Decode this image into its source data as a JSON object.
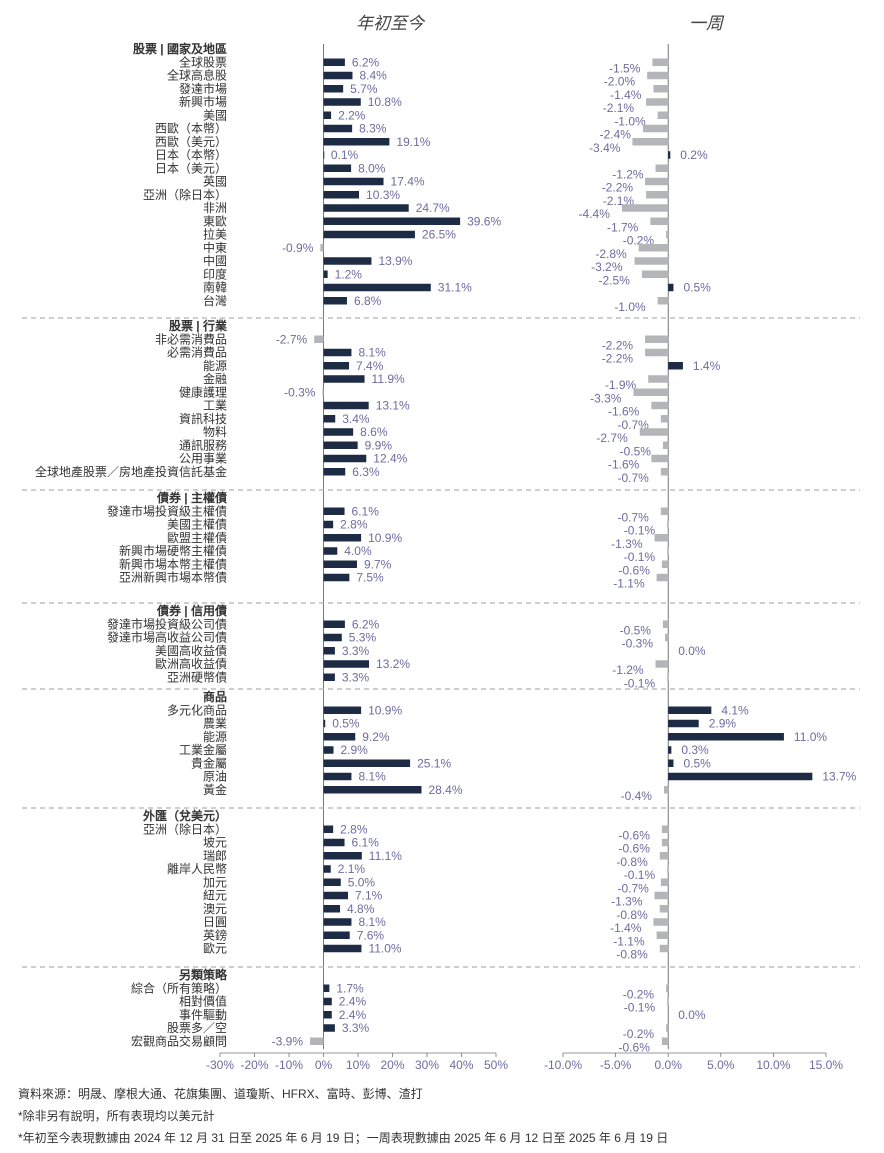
{
  "chart_data": {
    "type": "bar",
    "panels": [
      {
        "title": "年初至今",
        "xlim": [
          -30,
          50
        ],
        "ticks": [
          -30,
          -20,
          -10,
          0,
          10,
          20,
          30,
          40,
          50
        ],
        "tick_labels": [
          "-30%",
          "-20%",
          "-10%",
          "0%",
          "10%",
          "20%",
          "30%",
          "40%",
          "50%"
        ]
      },
      {
        "title": "一周",
        "xlim": [
          -10,
          15
        ],
        "ticks": [
          -10,
          -5,
          0,
          5,
          10,
          15
        ],
        "tick_labels": [
          "-10.0%",
          "-5.0%",
          "0.0%",
          "5.0%",
          "10.0%",
          "15.0%"
        ]
      }
    ],
    "colors": {
      "positive": "#1d2c44",
      "negative": "#b3b5b8",
      "value_label": "#6d6ca0",
      "category": "#333333",
      "divider": "#b0b0b0"
    },
    "groups": [
      {
        "title": "股票 | 國家及地區",
        "rows": [
          {
            "label": "全球股票",
            "ytd": 6.2,
            "week": -1.5
          },
          {
            "label": "全球高息股",
            "ytd": 8.4,
            "week": -2.0
          },
          {
            "label": "發達市場",
            "ytd": 5.7,
            "week": -1.4
          },
          {
            "label": "新興市場",
            "ytd": 10.8,
            "week": -2.1
          },
          {
            "label": "美國",
            "ytd": 2.2,
            "week": -1.0
          },
          {
            "label": "西歐（本幣）",
            "ytd": 8.3,
            "week": -2.4
          },
          {
            "label": "西歐（美元）",
            "ytd": 19.1,
            "week": -3.4
          },
          {
            "label": "日本（本幣）",
            "ytd": 0.1,
            "week": 0.2
          },
          {
            "label": "日本（美元）",
            "ytd": 8.0,
            "week": -1.2
          },
          {
            "label": "英國",
            "ytd": 17.4,
            "week": -2.2
          },
          {
            "label": "亞洲（除日本）",
            "ytd": 10.3,
            "week": -2.1
          },
          {
            "label": "非洲",
            "ytd": 24.7,
            "week": -4.4
          },
          {
            "label": "東歐",
            "ytd": 39.6,
            "week": -1.7
          },
          {
            "label": "拉美",
            "ytd": 26.5,
            "week": -0.2
          },
          {
            "label": "中東",
            "ytd": -0.9,
            "week": -2.8
          },
          {
            "label": "中國",
            "ytd": 13.9,
            "week": -3.2
          },
          {
            "label": "印度",
            "ytd": 1.2,
            "week": -2.5
          },
          {
            "label": "南韓",
            "ytd": 31.1,
            "week": 0.5
          },
          {
            "label": "台灣",
            "ytd": 6.8,
            "week": -1.0
          }
        ]
      },
      {
        "title": "股票 | 行業",
        "rows": [
          {
            "label": "非必需消費品",
            "ytd": -2.7,
            "week": -2.2
          },
          {
            "label": "必需消費品",
            "ytd": 8.1,
            "week": -2.2
          },
          {
            "label": "能源",
            "ytd": 7.4,
            "week": 1.4
          },
          {
            "label": "金融",
            "ytd": 11.9,
            "week": -1.9
          },
          {
            "label": "健康護理",
            "ytd": -0.3,
            "week": -3.3
          },
          {
            "label": "工業",
            "ytd": 13.1,
            "week": -1.6
          },
          {
            "label": "資訊科技",
            "ytd": 3.4,
            "week": -0.7
          },
          {
            "label": "物料",
            "ytd": 8.6,
            "week": -2.7
          },
          {
            "label": "通訊服務",
            "ytd": 9.9,
            "week": -0.5
          },
          {
            "label": "公用事業",
            "ytd": 12.4,
            "week": -1.6
          },
          {
            "label": "全球地產股票／房地產投資信託基金",
            "ytd": 6.3,
            "week": -0.7
          }
        ]
      },
      {
        "title": "債券 | 主權債",
        "rows": [
          {
            "label": "發達市場投資級主權債",
            "ytd": 6.1,
            "week": -0.7
          },
          {
            "label": "美國主權債",
            "ytd": 2.8,
            "week": -0.1
          },
          {
            "label": "歐盟主權債",
            "ytd": 10.9,
            "week": -1.3
          },
          {
            "label": "新興市場硬幣主權債",
            "ytd": 4.0,
            "week": -0.1
          },
          {
            "label": "新興市場本幣主權債",
            "ytd": 9.7,
            "week": -0.6
          },
          {
            "label": "亞洲新興市場本幣債",
            "ytd": 7.5,
            "week": -1.1
          }
        ]
      },
      {
        "title": "債券 | 信用債",
        "rows": [
          {
            "label": "發達市場投資級公司債",
            "ytd": 6.2,
            "week": -0.5
          },
          {
            "label": "發達市場高收益公司債",
            "ytd": 5.3,
            "week": -0.3
          },
          {
            "label": "美國高收益債",
            "ytd": 3.3,
            "week": 0.0
          },
          {
            "label": "歐洲高收益債",
            "ytd": 13.2,
            "week": -1.2
          },
          {
            "label": "亞洲硬幣債",
            "ytd": 3.3,
            "week": -0.1
          }
        ]
      },
      {
        "title": "商品",
        "rows": [
          {
            "label": "多元化商品",
            "ytd": 10.9,
            "week": 4.1
          },
          {
            "label": "農業",
            "ytd": 0.5,
            "week": 2.9
          },
          {
            "label": "能源",
            "ytd": 9.2,
            "week": 11.0
          },
          {
            "label": "工業金屬",
            "ytd": 2.9,
            "week": 0.3
          },
          {
            "label": "貴金屬",
            "ytd": 25.1,
            "week": 0.5
          },
          {
            "label": "原油",
            "ytd": 8.1,
            "week": 13.7
          },
          {
            "label": "黃金",
            "ytd": 28.4,
            "week": -0.4
          }
        ]
      },
      {
        "title": "外匯（兌美元）",
        "rows": [
          {
            "label": "亞洲（除日本）",
            "ytd": 2.8,
            "week": -0.6
          },
          {
            "label": "坡元",
            "ytd": 6.1,
            "week": -0.6
          },
          {
            "label": "瑞郎",
            "ytd": 11.1,
            "week": -0.8
          },
          {
            "label": "離岸人民幣",
            "ytd": 2.1,
            "week": -0.1
          },
          {
            "label": "加元",
            "ytd": 5.0,
            "week": -0.7
          },
          {
            "label": "紐元",
            "ytd": 7.1,
            "week": -1.3
          },
          {
            "label": "澳元",
            "ytd": 4.8,
            "week": -0.8
          },
          {
            "label": "日圓",
            "ytd": 8.1,
            "week": -1.4
          },
          {
            "label": "英鎊",
            "ytd": 7.6,
            "week": -1.1
          },
          {
            "label": "歐元",
            "ytd": 11.0,
            "week": -0.8
          }
        ]
      },
      {
        "title": "另類策略",
        "rows": [
          {
            "label": "綜合（所有策略）",
            "ytd": 1.7,
            "week": -0.2
          },
          {
            "label": "相對價值",
            "ytd": 2.4,
            "week": -0.1
          },
          {
            "label": "事件驅動",
            "ytd": 2.4,
            "week": 0.0
          },
          {
            "label": "股票多／空",
            "ytd": 3.3,
            "week": -0.2
          },
          {
            "label": "宏觀商品交易顧問",
            "ytd": -3.9,
            "week": -0.6
          }
        ]
      }
    ]
  },
  "footnotes": {
    "source": "資料來源：明晟、摩根大通、花旗集團、道瓊斯、HFRX、富時、彭博、渣打",
    "note1": "*除非另有說明，所有表現均以美元計",
    "note2": "*年初至今表現數據由 2024 年 12 月 31 日至 2025 年 6 月 19 日；一周表現數據由 2025 年 6 月 12 日至 2025 年 6 月 19 日"
  }
}
